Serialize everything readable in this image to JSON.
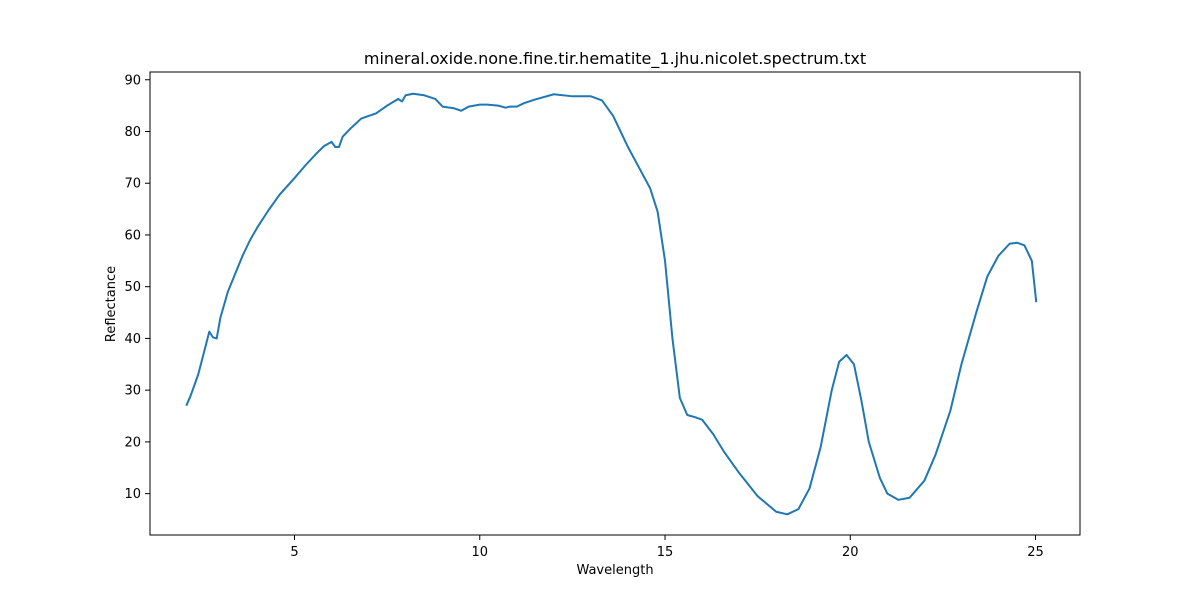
{
  "chart_data": {
    "type": "line",
    "title": "mineral.oxide.none.fine.tir.hematite_1.jhu.nicolet.spectrum.txt",
    "xlabel": "Wavelength",
    "ylabel": "Reflectance",
    "xlim": [
      1.1,
      26.2
    ],
    "ylim": [
      2.0,
      91.5
    ],
    "xticks": [
      5,
      10,
      15,
      20,
      25
    ],
    "yticks": [
      10,
      20,
      30,
      40,
      50,
      60,
      70,
      80,
      90
    ],
    "grid": false,
    "legend": "none",
    "line_color": "#1f77b4",
    "series": [
      {
        "x": [
          2.08,
          2.2,
          2.4,
          2.6,
          2.7,
          2.8,
          2.9,
          3.0,
          3.2,
          3.4,
          3.6,
          3.8,
          4.0,
          4.3,
          4.6,
          5.0,
          5.3,
          5.6,
          5.8,
          6.0,
          6.1,
          6.2,
          6.3,
          6.5,
          6.8,
          7.0,
          7.2,
          7.5,
          7.8,
          7.9,
          8.0,
          8.2,
          8.5,
          8.8,
          9.0,
          9.3,
          9.5,
          9.7,
          10.0,
          10.2,
          10.5,
          10.7,
          10.8,
          11.0,
          11.2,
          11.5,
          12.0,
          12.5,
          13.0,
          13.3,
          13.6,
          14.0,
          14.3,
          14.6,
          14.8,
          15.0,
          15.2,
          15.4,
          15.6,
          15.8,
          16.0,
          16.3,
          16.6,
          17.0,
          17.5,
          18.0,
          18.3,
          18.6,
          18.9,
          19.2,
          19.5,
          19.7,
          19.9,
          20.1,
          20.3,
          20.5,
          20.8,
          21.0,
          21.3,
          21.6,
          22.0,
          22.3,
          22.7,
          23.0,
          23.4,
          23.7,
          24.0,
          24.3,
          24.5,
          24.7,
          24.9,
          25.02
        ],
        "y": [
          27.0,
          29.0,
          33.0,
          38.5,
          41.3,
          40.2,
          40.0,
          44.0,
          49.0,
          52.5,
          56.0,
          59.0,
          61.5,
          64.8,
          67.8,
          71.0,
          73.5,
          75.8,
          77.2,
          78.0,
          77.0,
          77.0,
          79.0,
          80.5,
          82.5,
          83.0,
          83.5,
          85.0,
          86.3,
          85.8,
          87.0,
          87.3,
          87.0,
          86.3,
          84.8,
          84.5,
          84.0,
          84.8,
          85.2,
          85.2,
          85.0,
          84.6,
          84.8,
          84.8,
          85.5,
          86.2,
          87.2,
          86.8,
          86.8,
          86.0,
          83.0,
          77.0,
          73.0,
          69.0,
          64.5,
          55.0,
          40.0,
          28.5,
          25.2,
          24.8,
          24.3,
          21.5,
          18.0,
          14.0,
          9.5,
          6.5,
          6.0,
          7.0,
          11.0,
          19.0,
          30.0,
          35.5,
          36.8,
          35.0,
          28.0,
          20.0,
          13.0,
          10.0,
          8.8,
          9.2,
          12.5,
          17.5,
          26.0,
          35.0,
          45.0,
          52.0,
          56.0,
          58.3,
          58.5,
          58.0,
          55.0,
          47.0
        ]
      }
    ]
  }
}
